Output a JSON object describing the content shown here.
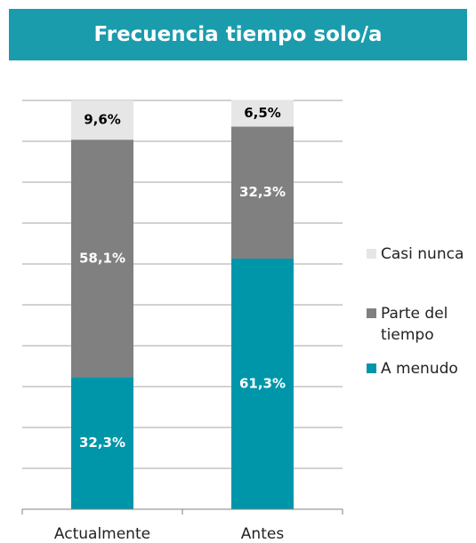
{
  "chart_data": {
    "type": "stacked_bar",
    "title": "Frecuencia tiempo solo/a",
    "categories": [
      "Actualmente",
      "Antes"
    ],
    "series": [
      {
        "name": "A menudo",
        "color": "#0096aa",
        "label_color": "#ffffff",
        "values": [
          32.3,
          61.3
        ],
        "value_labels": [
          "32,3%",
          "61,3%"
        ]
      },
      {
        "name": "Parte del tiempo",
        "color": "#808080",
        "label_color": "#ffffff",
        "values": [
          58.1,
          32.3
        ],
        "value_labels": [
          "58,1%",
          "32,3%"
        ]
      },
      {
        "name": "Casi nunca",
        "color": "#e6e6e6",
        "label_color": "#000000",
        "values": [
          9.6,
          6.5
        ],
        "value_labels": [
          "9,6%",
          "6,5%"
        ]
      }
    ],
    "ylim": [
      0,
      100
    ],
    "yticks": [
      0,
      10,
      20,
      30,
      40,
      50,
      60,
      70,
      80,
      90,
      100
    ],
    "grid": true,
    "legend": "right"
  }
}
